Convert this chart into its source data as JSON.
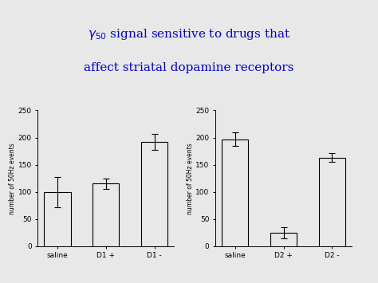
{
  "title_color": "#0000CC",
  "background_color": "#e8e8e8",
  "title_fontsize": 11,
  "chart1": {
    "categories": [
      "saline",
      "D1 +",
      "D1 -"
    ],
    "values": [
      100,
      115,
      192
    ],
    "errors": [
      28,
      10,
      15
    ],
    "ylabel": "number of 50Hz events",
    "ylim": [
      0,
      250
    ],
    "yticks": [
      0,
      50,
      100,
      150,
      200,
      250
    ]
  },
  "chart2": {
    "categories": [
      "saline",
      "D2 +",
      "D2 -"
    ],
    "values": [
      197,
      25,
      163
    ],
    "errors": [
      12,
      10,
      8
    ],
    "ylabel": "number of 50Hz events",
    "ylim": [
      0,
      250
    ],
    "yticks": [
      0,
      50,
      100,
      150,
      200,
      250
    ]
  }
}
